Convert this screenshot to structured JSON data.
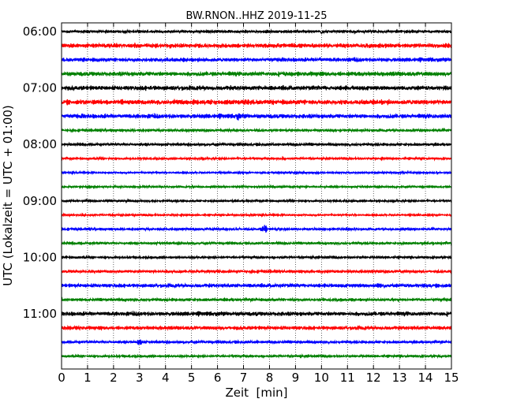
{
  "chart_data": {
    "type": "line",
    "title": "BW.RNON..HHZ 2019-11-25",
    "xlabel": "Zeit  [min]",
    "ylabel": "UTC (Lokalzeit = UTC + 01:00)",
    "xlim": [
      0,
      15
    ],
    "x_ticks": [
      0,
      1,
      2,
      3,
      4,
      5,
      6,
      7,
      8,
      9,
      10,
      11,
      12,
      13,
      14,
      15
    ],
    "y_tick_labels": [
      "06:00",
      "07:00",
      "08:00",
      "09:00",
      "10:00",
      "11:00"
    ],
    "grid": "vertical dotted lines at each minute",
    "color_cycle": [
      "#000000",
      "#ff0000",
      "#0000ff",
      "#008000"
    ],
    "traces": [
      {
        "start": "06:00",
        "color": "#000000",
        "amplitude": 0.22,
        "events": [
          [
            7.1,
            0.5
          ],
          [
            10.0,
            0.65
          ],
          [
            12.0,
            0.3
          ]
        ]
      },
      {
        "start": "06:15",
        "color": "#ff0000",
        "amplitude": 0.36,
        "events": []
      },
      {
        "start": "06:30",
        "color": "#0000ff",
        "amplitude": 0.32,
        "events": [
          [
            2.1,
            0.45
          ]
        ]
      },
      {
        "start": "06:45",
        "color": "#008000",
        "amplitude": 0.36,
        "events": []
      },
      {
        "start": "07:00",
        "color": "#000000",
        "amplitude": 0.36,
        "events": []
      },
      {
        "start": "07:15",
        "color": "#ff0000",
        "amplitude": 0.4,
        "events": [
          [
            7.0,
            0.55
          ]
        ]
      },
      {
        "start": "07:30",
        "color": "#0000ff",
        "amplitude": 0.36,
        "events": [
          [
            6.8,
            0.9
          ],
          [
            2.3,
            0.45
          ]
        ]
      },
      {
        "start": "07:45",
        "color": "#008000",
        "amplitude": 0.22,
        "events": []
      },
      {
        "start": "08:00",
        "color": "#000000",
        "amplitude": 0.22,
        "events": []
      },
      {
        "start": "08:15",
        "color": "#ff0000",
        "amplitude": 0.18,
        "events": []
      },
      {
        "start": "08:30",
        "color": "#0000ff",
        "amplitude": 0.16,
        "events": []
      },
      {
        "start": "08:45",
        "color": "#008000",
        "amplitude": 0.17,
        "events": []
      },
      {
        "start": "09:00",
        "color": "#000000",
        "amplitude": 0.18,
        "events": [
          [
            4.6,
            0.3
          ]
        ]
      },
      {
        "start": "09:15",
        "color": "#ff0000",
        "amplitude": 0.16,
        "events": []
      },
      {
        "start": "09:30",
        "color": "#0000ff",
        "amplitude": 0.2,
        "events": [
          [
            7.8,
            1.0
          ],
          [
            11.0,
            0.5
          ],
          [
            5.6,
            0.3
          ]
        ]
      },
      {
        "start": "09:45",
        "color": "#008000",
        "amplitude": 0.2,
        "events": []
      },
      {
        "start": "10:00",
        "color": "#000000",
        "amplitude": 0.2,
        "events": []
      },
      {
        "start": "10:15",
        "color": "#ff0000",
        "amplitude": 0.24,
        "events": []
      },
      {
        "start": "10:30",
        "color": "#0000ff",
        "amplitude": 0.3,
        "events": [
          [
            12.2,
            0.8
          ]
        ]
      },
      {
        "start": "10:45",
        "color": "#008000",
        "amplitude": 0.24,
        "events": [
          [
            2.0,
            0.35
          ],
          [
            8.9,
            0.3
          ]
        ]
      },
      {
        "start": "11:00",
        "color": "#000000",
        "amplitude": 0.34,
        "events": [
          [
            7.5,
            0.45
          ]
        ]
      },
      {
        "start": "11:15",
        "color": "#ff0000",
        "amplitude": 0.3,
        "events": []
      },
      {
        "start": "11:30",
        "color": "#0000ff",
        "amplitude": 0.22,
        "events": [
          [
            3.0,
            0.7
          ],
          [
            7.5,
            0.4
          ],
          [
            9.2,
            0.35
          ]
        ]
      },
      {
        "start": "11:45",
        "color": "#008000",
        "amplitude": 0.2,
        "events": [
          [
            2.2,
            0.35
          ]
        ]
      }
    ]
  }
}
